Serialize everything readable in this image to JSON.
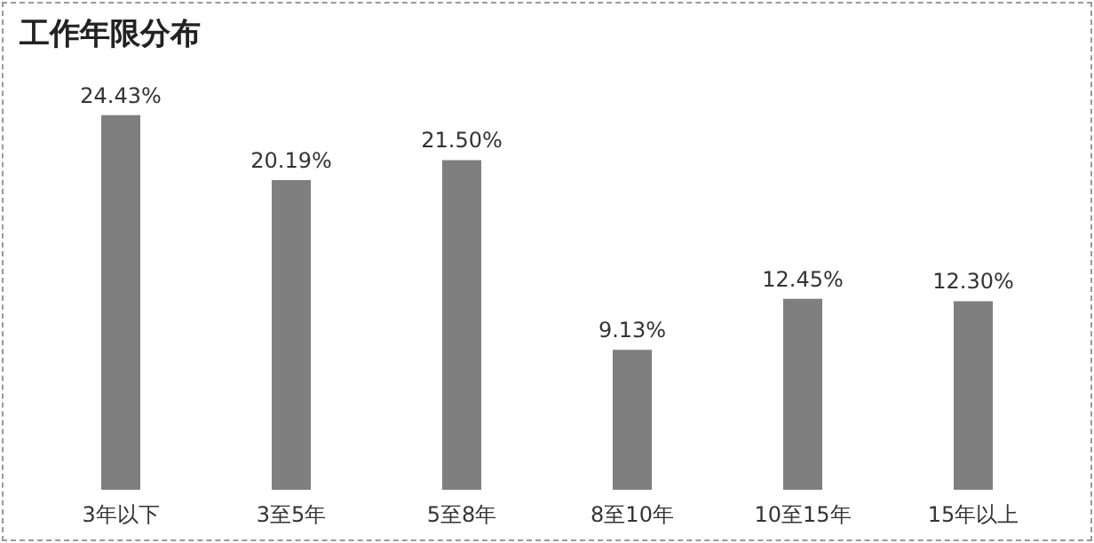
{
  "chart_data": {
    "type": "bar",
    "title": "工作年限分布",
    "categories": [
      "3年以下",
      "3至5年",
      "5至8年",
      "8至10年",
      "10至15年",
      "15年以上"
    ],
    "values": [
      24.43,
      20.19,
      21.5,
      9.13,
      12.45,
      12.3
    ],
    "value_labels": [
      "24.43%",
      "20.19%",
      "21.50%",
      "9.13%",
      "12.45%",
      "12.30%"
    ],
    "color": "#7f7f7f"
  }
}
